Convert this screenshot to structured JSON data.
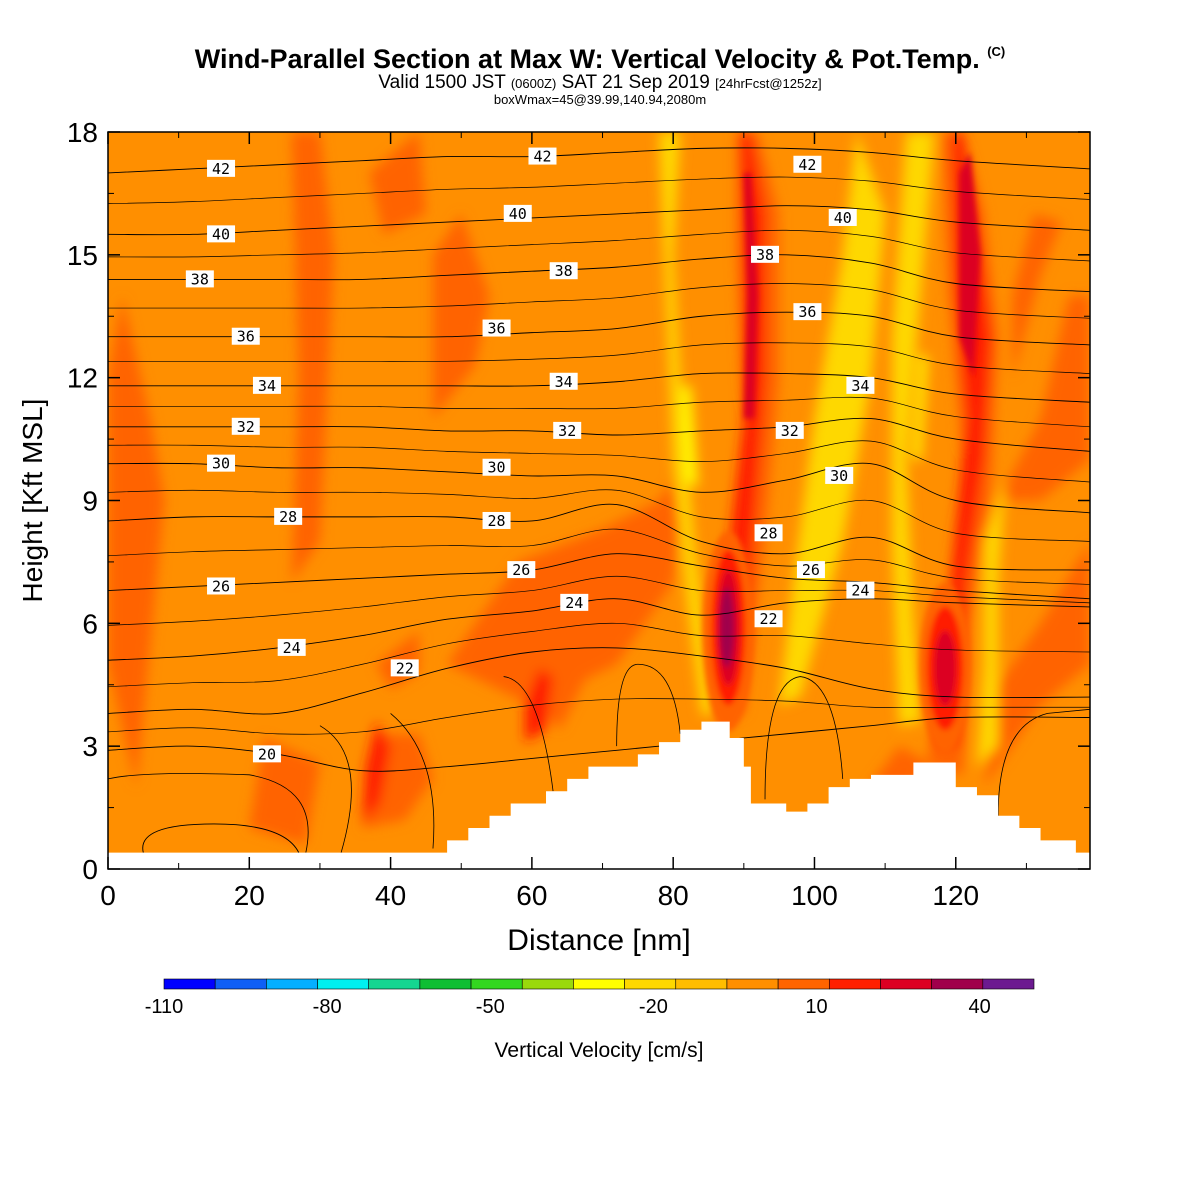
{
  "header": {
    "title_main": "Wind-Parallel Section at Max W: Vertical Velocity & Pot.Temp.",
    "title_copyright": "(C)",
    "subtitle_valid": "Valid 1500 JST",
    "subtitle_z": "(0600Z)",
    "subtitle_date": "SAT 21 Sep 2019",
    "subtitle_fcst": "[24hrFcst@1252z]",
    "box_info": "boxWmax=45@39.99,140.94,2080m"
  },
  "chart_data": {
    "type": "heatmap",
    "title": "Wind-Parallel Section at Max W: Vertical Velocity & Pot.Temp.",
    "xlabel": "Distance [nm]",
    "ylabel": "Height [Kft MSL]",
    "xlim": [
      0,
      139
    ],
    "ylim": [
      0,
      18
    ],
    "x_ticks": [
      "0",
      "20",
      "40",
      "60",
      "80",
      "100",
      "120"
    ],
    "y_ticks": [
      "0",
      "3",
      "6",
      "9",
      "12",
      "15",
      "18"
    ],
    "grid": false,
    "colorbar": {
      "label": "Vertical Velocity [cm/s]",
      "placement": "bottom",
      "tick_labels": [
        "-110",
        "-80",
        "-50",
        "-20",
        "10",
        "40"
      ],
      "bounds": [
        -110,
        50
      ],
      "step": 10,
      "colors": [
        "#0000ff",
        "#0f5ff5",
        "#05afff",
        "#00f0f0",
        "#15d691",
        "#0ebe33",
        "#33d71f",
        "#9ad90c",
        "#ffff00",
        "#fed800",
        "#ffbd00",
        "#ff8f00",
        "#ff6400",
        "#ff1f00",
        "#dc0023",
        "#a0004b",
        "#6c1a90"
      ]
    },
    "terrain_profile": {
      "x": [
        0,
        47,
        48,
        50,
        51,
        53,
        54,
        56,
        57,
        59,
        62,
        65,
        68,
        72,
        75,
        78,
        81,
        84,
        86,
        88,
        90,
        91,
        93,
        96,
        99,
        102,
        105,
        108,
        111,
        114,
        117,
        120,
        123,
        126,
        129,
        132,
        135,
        137,
        139
      ],
      "height_kft": [
        0.4,
        0.4,
        0.7,
        0.7,
        1.0,
        1.0,
        1.3,
        1.3,
        1.6,
        1.6,
        1.9,
        2.2,
        2.5,
        2.5,
        2.8,
        3.1,
        3.4,
        3.6,
        3.6,
        3.2,
        2.5,
        1.6,
        1.6,
        1.4,
        1.6,
        2.0,
        2.2,
        2.3,
        2.3,
        2.6,
        2.6,
        2.0,
        1.8,
        1.3,
        1.0,
        0.7,
        0.7,
        0.4,
        0.4
      ]
    },
    "theta_contours": [
      {
        "value": 20,
        "label": "20",
        "label_x": 22.5,
        "heights_kft": [
          2.9,
          3.0,
          2.8,
          2.4,
          2.5,
          2.7,
          2.9,
          3.1,
          3.3,
          3.5,
          3.7,
          3.7
        ]
      },
      {
        "value": 22,
        "label": "22",
        "label_x": 42,
        "heights_kft": [
          3.8,
          3.9,
          3.8,
          4.3,
          4.9,
          5.3,
          5.4,
          5.2,
          4.9,
          4.4,
          4.2,
          4.2
        ]
      },
      {
        "value": 24,
        "label": "24",
        "label_x": 26,
        "heights_kft": [
          5.1,
          5.2,
          5.4,
          5.7,
          6.1,
          6.3,
          6.6,
          6.2,
          6.5,
          6.6,
          6.5,
          6.4
        ]
      },
      {
        "value": 26,
        "label": "26",
        "label_x": 16,
        "heights_kft": [
          6.8,
          6.9,
          7.0,
          7.1,
          7.2,
          7.3,
          7.7,
          7.4,
          7.1,
          7.0,
          6.8,
          6.6
        ]
      },
      {
        "value": 28,
        "label": "28",
        "label_x": 25.5,
        "heights_kft": [
          8.5,
          8.6,
          8.6,
          8.6,
          8.6,
          8.5,
          8.9,
          8.0,
          7.7,
          8.1,
          7.4,
          7.3
        ]
      },
      {
        "value": 30,
        "label": "30",
        "label_x": 16,
        "heights_kft": [
          9.9,
          9.9,
          9.8,
          9.8,
          9.7,
          9.6,
          9.6,
          9.2,
          9.5,
          9.9,
          9.0,
          8.7
        ]
      },
      {
        "value": 32,
        "label": "32",
        "label_x": 19.5,
        "heights_kft": [
          10.8,
          10.8,
          10.8,
          10.8,
          10.7,
          10.7,
          10.6,
          10.7,
          10.8,
          11.0,
          10.5,
          10.2
        ]
      },
      {
        "value": 34,
        "label": "34",
        "label_x": 22.5,
        "heights_kft": [
          11.8,
          11.8,
          11.8,
          11.8,
          11.8,
          11.8,
          11.9,
          12.1,
          12.1,
          12.0,
          11.6,
          11.4
        ]
      },
      {
        "value": 36,
        "label": "36",
        "label_x": 19.5,
        "heights_kft": [
          13.0,
          13.0,
          13.0,
          13.0,
          13.0,
          13.1,
          13.2,
          13.5,
          13.6,
          13.5,
          13.0,
          12.8
        ]
      },
      {
        "value": 38,
        "label": "38",
        "label_x": 13,
        "heights_kft": [
          14.4,
          14.4,
          14.4,
          14.4,
          14.5,
          14.6,
          14.7,
          14.9,
          15.0,
          14.8,
          14.3,
          14.1
        ]
      },
      {
        "value": 40,
        "label": "40",
        "label_x": 16,
        "heights_kft": [
          15.5,
          15.5,
          15.6,
          15.7,
          15.8,
          15.9,
          16.0,
          16.1,
          16.2,
          16.1,
          15.8,
          15.6
        ]
      },
      {
        "value": 42,
        "label": "42",
        "label_x": 16,
        "heights_kft": [
          17.0,
          17.1,
          17.2,
          17.3,
          17.4,
          17.4,
          17.5,
          17.6,
          17.6,
          17.5,
          17.3,
          17.1
        ]
      }
    ],
    "contour_x_nodes": [
      0,
      12,
      24,
      36,
      48,
      60,
      72,
      84,
      96,
      108,
      120,
      139
    ],
    "extra_contour_labels": [
      {
        "text": "42",
        "x": 61.5,
        "y": 17.4
      },
      {
        "text": "42",
        "x": 99,
        "y": 17.2
      },
      {
        "text": "40",
        "x": 58,
        "y": 16.0
      },
      {
        "text": "40",
        "x": 104,
        "y": 15.9
      },
      {
        "text": "38",
        "x": 64.5,
        "y": 14.6
      },
      {
        "text": "38",
        "x": 93,
        "y": 15.0
      },
      {
        "text": "36",
        "x": 55,
        "y": 13.2
      },
      {
        "text": "36",
        "x": 99,
        "y": 13.6
      },
      {
        "text": "34",
        "x": 64.5,
        "y": 11.9
      },
      {
        "text": "34",
        "x": 106.5,
        "y": 11.8
      },
      {
        "text": "32",
        "x": 65,
        "y": 10.7
      },
      {
        "text": "32",
        "x": 96.5,
        "y": 10.7
      },
      {
        "text": "30",
        "x": 55,
        "y": 9.8
      },
      {
        "text": "30",
        "x": 103.5,
        "y": 9.6
      },
      {
        "text": "28",
        "x": 55,
        "y": 8.5
      },
      {
        "text": "28",
        "x": 93.5,
        "y": 8.2
      },
      {
        "text": "26",
        "x": 58.5,
        "y": 7.3
      },
      {
        "text": "26",
        "x": 99.5,
        "y": 7.3
      },
      {
        "text": "24",
        "x": 66,
        "y": 6.5
      },
      {
        "text": "24",
        "x": 106.5,
        "y": 6.8
      },
      {
        "text": "22",
        "x": 93.5,
        "y": 6.1
      }
    ],
    "w_features": [
      {
        "kind": "updraft_core",
        "x": 87.5,
        "y": 5.8,
        "w": 45
      },
      {
        "kind": "updraft_core",
        "x": 118.5,
        "y": 4.9,
        "w": 30
      },
      {
        "kind": "updraft_band",
        "x_bottom": 88,
        "x_top": 91,
        "w": 20
      },
      {
        "kind": "updraft_band",
        "x_bottom": 118,
        "x_top": 122,
        "w": 25
      }
    ]
  }
}
